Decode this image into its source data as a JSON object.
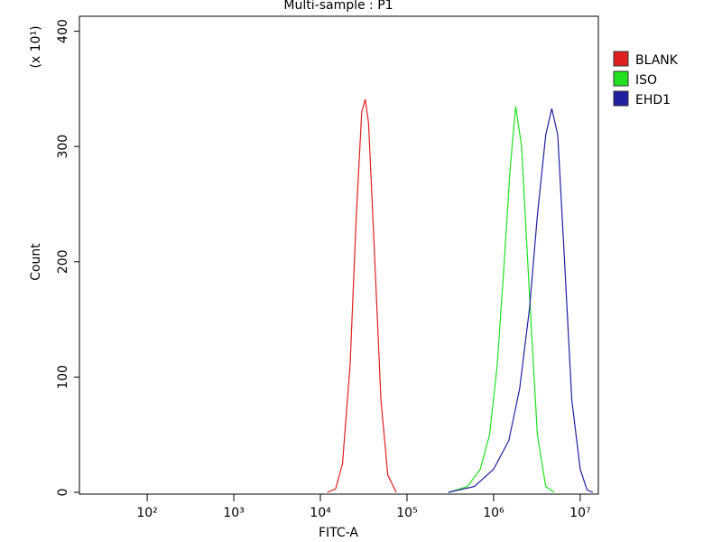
{
  "chart_data": {
    "type": "line",
    "title": "Multi-sample : P1",
    "x_label": "FITC-A",
    "y_label": "Count",
    "y_multiplier": "(x 10¹)",
    "x_log": true,
    "xlim": [
      16.5,
      16200000
    ],
    "xticks": [
      {
        "value": 100,
        "label": "10²"
      },
      {
        "value": 1000,
        "label": "10³"
      },
      {
        "value": 10000,
        "label": "10⁴"
      },
      {
        "value": 100000,
        "label": "10⁵"
      },
      {
        "value": 1000000,
        "label": "10⁶"
      },
      {
        "value": 10000000,
        "label": "10⁷"
      }
    ],
    "ylim": [
      0,
      413
    ],
    "yticks": [
      0,
      100,
      200,
      300,
      400
    ],
    "legend": "right",
    "series": [
      {
        "name": "BLANK",
        "color": "#e02020",
        "x": [
          12000,
          15000,
          18000,
          22000,
          26000,
          30000,
          33000,
          36000,
          42000,
          50000,
          60000,
          75000
        ],
        "values": [
          0,
          3,
          25,
          110,
          240,
          330,
          341,
          320,
          210,
          80,
          15,
          0
        ]
      },
      {
        "name": "ISO",
        "color": "#20e020",
        "x": [
          300000,
          500000,
          700000,
          900000,
          1100000,
          1300000,
          1550000,
          1800000,
          2100000,
          2600000,
          3200000,
          4000000,
          5000000
        ],
        "values": [
          0,
          5,
          20,
          50,
          110,
          190,
          280,
          335,
          300,
          170,
          50,
          5,
          0
        ]
      },
      {
        "name": "EHD1",
        "color": "#2020a0",
        "x": [
          300000,
          600000,
          1000000,
          1500000,
          2000000,
          2600000,
          3200000,
          4000000,
          4700000,
          5500000,
          6500000,
          8000000,
          10000000,
          12000000,
          14000000
        ],
        "values": [
          0,
          5,
          20,
          45,
          90,
          160,
          240,
          310,
          333,
          310,
          210,
          80,
          20,
          2,
          0
        ]
      }
    ]
  }
}
